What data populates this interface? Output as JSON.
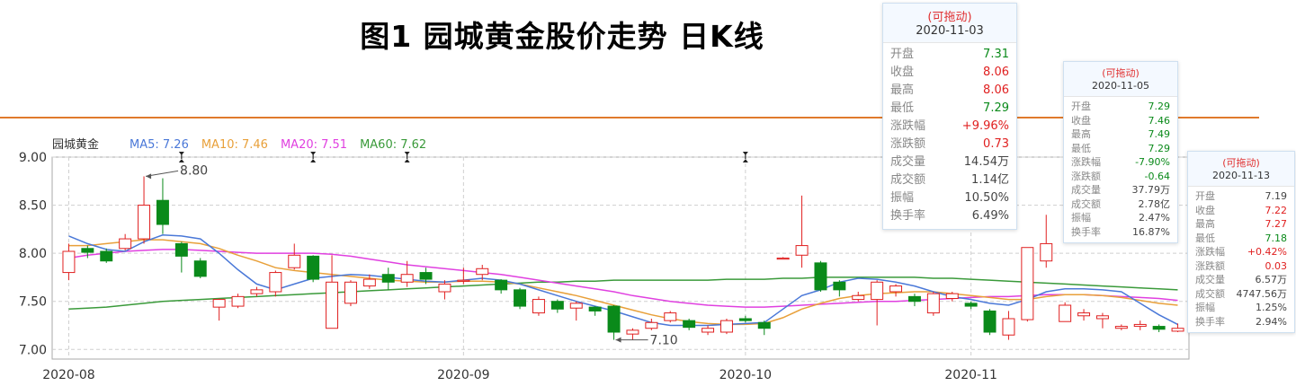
{
  "title": "图1 园城黄金股价走势 日K线",
  "chart_data": {
    "type": "candlestick",
    "legend": {
      "stock_name": "园城黄金",
      "items": [
        {
          "label": "MA5: 7.26",
          "color": "#4a78d8"
        },
        {
          "label": "MA10: 7.46",
          "color": "#e8a03a"
        },
        {
          "label": "MA20: 7.51",
          "color": "#e040e0"
        },
        {
          "label": "MA60: 7.62",
          "color": "#3a9a3a"
        }
      ]
    },
    "ylim": [
      6.9,
      9.0
    ],
    "y_ticks": [
      "9.00",
      "8.50",
      "8.00",
      "7.50",
      "7.00"
    ],
    "y_tick_values": [
      9.0,
      8.5,
      8.0,
      7.5,
      7.0
    ],
    "x_ticks": [
      {
        "label": "2020-08",
        "index": 0
      },
      {
        "label": "2020-09",
        "index": 21
      },
      {
        "label": "2020-10",
        "index": 36
      },
      {
        "label": "2020-11",
        "index": 48
      }
    ],
    "annotations": [
      {
        "text": "8.80",
        "index": 4,
        "value": 8.8
      },
      {
        "text": "7.10",
        "index": 29,
        "value": 7.1
      }
    ],
    "markers": [
      6,
      13,
      18,
      36
    ],
    "colors": {
      "up": "#e02020",
      "down": "#0a8a1a",
      "ma5": "#4a78d8",
      "ma10": "#e8a03a",
      "ma20": "#e040e0",
      "ma60": "#3a9a3a"
    },
    "candles": [
      {
        "date": "2020-07-31",
        "o": 7.8,
        "c": 8.02,
        "h": 8.1,
        "l": 7.72
      },
      {
        "date": "2020-08-03",
        "o": 8.05,
        "c": 8.01,
        "h": 8.08,
        "l": 7.95
      },
      {
        "date": "2020-08-04",
        "o": 8.02,
        "c": 7.92,
        "h": 8.05,
        "l": 7.9
      },
      {
        "date": "2020-08-05",
        "o": 8.05,
        "c": 8.15,
        "h": 8.2,
        "l": 8.03
      },
      {
        "date": "2020-08-06",
        "o": 8.15,
        "c": 8.5,
        "h": 8.8,
        "l": 8.1
      },
      {
        "date": "2020-08-07",
        "o": 8.55,
        "c": 8.3,
        "h": 8.78,
        "l": 8.2
      },
      {
        "date": "2020-08-10",
        "o": 8.1,
        "c": 7.97,
        "h": 8.12,
        "l": 7.8
      },
      {
        "date": "2020-08-11",
        "o": 7.92,
        "c": 7.76,
        "h": 7.95,
        "l": 7.74
      },
      {
        "date": "2020-08-12",
        "o": 7.44,
        "c": 7.52,
        "h": 7.53,
        "l": 7.3
      },
      {
        "date": "2020-08-13",
        "o": 7.45,
        "c": 7.55,
        "h": 7.58,
        "l": 7.43
      },
      {
        "date": "2020-08-14",
        "o": 7.58,
        "c": 7.62,
        "h": 7.65,
        "l": 7.55
      },
      {
        "date": "2020-08-17",
        "o": 7.6,
        "c": 7.8,
        "h": 7.82,
        "l": 7.55
      },
      {
        "date": "2020-08-18",
        "o": 7.85,
        "c": 7.98,
        "h": 8.1,
        "l": 7.83
      },
      {
        "date": "2020-08-19",
        "o": 7.97,
        "c": 7.73,
        "h": 7.98,
        "l": 7.7
      },
      {
        "date": "2020-08-20",
        "o": 7.22,
        "c": 7.7,
        "h": 7.98,
        "l": 7.22
      },
      {
        "date": "2020-08-21",
        "o": 7.48,
        "c": 7.7,
        "h": 7.72,
        "l": 7.45
      },
      {
        "date": "2020-08-24",
        "o": 7.66,
        "c": 7.73,
        "h": 7.78,
        "l": 7.63
      },
      {
        "date": "2020-08-25",
        "o": 7.78,
        "c": 7.7,
        "h": 7.85,
        "l": 7.62
      },
      {
        "date": "2020-08-26",
        "o": 7.7,
        "c": 7.78,
        "h": 7.92,
        "l": 7.65
      },
      {
        "date": "2020-08-27",
        "o": 7.8,
        "c": 7.73,
        "h": 7.85,
        "l": 7.68
      },
      {
        "date": "2020-08-28",
        "o": 7.6,
        "c": 7.68,
        "h": 7.72,
        "l": 7.52
      },
      {
        "date": "2020-08-31",
        "o": 7.72,
        "c": 7.72,
        "h": 7.85,
        "l": 7.68
      },
      {
        "date": "2020-09-01",
        "o": 7.78,
        "c": 7.84,
        "h": 7.88,
        "l": 7.72
      },
      {
        "date": "2020-09-02",
        "o": 7.72,
        "c": 7.62,
        "h": 7.73,
        "l": 7.58
      },
      {
        "date": "2020-09-03",
        "o": 7.62,
        "c": 7.45,
        "h": 7.64,
        "l": 7.42
      },
      {
        "date": "2020-09-04",
        "o": 7.38,
        "c": 7.52,
        "h": 7.55,
        "l": 7.35
      },
      {
        "date": "2020-09-07",
        "o": 7.5,
        "c": 7.42,
        "h": 7.52,
        "l": 7.38
      },
      {
        "date": "2020-09-08",
        "o": 7.43,
        "c": 7.48,
        "h": 7.5,
        "l": 7.3
      },
      {
        "date": "2020-09-09",
        "o": 7.44,
        "c": 7.4,
        "h": 7.45,
        "l": 7.35
      },
      {
        "date": "2020-09-10",
        "o": 7.45,
        "c": 7.18,
        "h": 7.46,
        "l": 7.1
      },
      {
        "date": "2020-09-11",
        "o": 7.16,
        "c": 7.2,
        "h": 7.22,
        "l": 7.1
      },
      {
        "date": "2020-09-14",
        "o": 7.22,
        "c": 7.28,
        "h": 7.32,
        "l": 7.2
      },
      {
        "date": "2020-09-15",
        "o": 7.3,
        "c": 7.38,
        "h": 7.4,
        "l": 7.28
      },
      {
        "date": "2020-09-16",
        "o": 7.3,
        "c": 7.23,
        "h": 7.32,
        "l": 7.2
      },
      {
        "date": "2020-09-17",
        "o": 7.18,
        "c": 7.22,
        "h": 7.25,
        "l": 7.15
      },
      {
        "date": "2020-09-18",
        "o": 7.18,
        "c": 7.3,
        "h": 7.32,
        "l": 7.16
      },
      {
        "date": "2020-09-21",
        "o": 7.32,
        "c": 7.3,
        "h": 7.35,
        "l": 7.28
      },
      {
        "date": "2020-09-22",
        "o": 7.28,
        "c": 7.22,
        "h": 7.3,
        "l": 7.15
      },
      {
        "date": "2020-09-23",
        "o": 7.95,
        "c": 7.95,
        "h": 7.96,
        "l": 7.95
      },
      {
        "date": "2020-09-24",
        "o": 7.98,
        "c": 8.08,
        "h": 8.6,
        "l": 7.85
      },
      {
        "date": "2020-09-25",
        "o": 7.9,
        "c": 7.62,
        "h": 7.92,
        "l": 7.6
      },
      {
        "date": "2020-09-28",
        "o": 7.7,
        "c": 7.62,
        "h": 7.72,
        "l": 7.55
      },
      {
        "date": "2020-09-29",
        "o": 7.52,
        "c": 7.56,
        "h": 7.6,
        "l": 7.5
      },
      {
        "date": "2020-09-30",
        "o": 7.52,
        "c": 7.7,
        "h": 7.72,
        "l": 7.25
      },
      {
        "date": "2020-10-09",
        "o": 7.6,
        "c": 7.66,
        "h": 7.68,
        "l": 7.55
      },
      {
        "date": "2020-10-12",
        "o": 7.55,
        "c": 7.5,
        "h": 7.58,
        "l": 7.45
      },
      {
        "date": "2020-10-13",
        "o": 7.38,
        "c": 7.58,
        "h": 7.6,
        "l": 7.35
      },
      {
        "date": "2020-10-14",
        "o": 7.53,
        "c": 7.58,
        "h": 7.6,
        "l": 7.5
      },
      {
        "date": "2020-10-15",
        "o": 7.48,
        "c": 7.45,
        "h": 7.5,
        "l": 7.42
      },
      {
        "date": "2020-10-16",
        "o": 7.4,
        "c": 7.18,
        "h": 7.42,
        "l": 7.15
      },
      {
        "date": "2020-10-19",
        "o": 7.15,
        "c": 7.32,
        "h": 7.4,
        "l": 7.1
      },
      {
        "date": "2020-10-20",
        "o": 7.31,
        "c": 8.06,
        "h": 8.06,
        "l": 7.29
      },
      {
        "date": "2020-10-21",
        "o": 7.92,
        "c": 8.1,
        "h": 8.4,
        "l": 7.85
      },
      {
        "date": "2020-10-22",
        "o": 7.29,
        "c": 7.46,
        "h": 7.49,
        "l": 7.29
      },
      {
        "date": "2020-10-23",
        "o": 7.35,
        "c": 7.38,
        "h": 7.42,
        "l": 7.3
      },
      {
        "date": "2020-10-26",
        "o": 7.32,
        "c": 7.35,
        "h": 7.38,
        "l": 7.22
      },
      {
        "date": "2020-10-27",
        "o": 7.22,
        "c": 7.24,
        "h": 7.26,
        "l": 7.2
      },
      {
        "date": "2020-10-28",
        "o": 7.24,
        "c": 7.26,
        "h": 7.3,
        "l": 7.2
      },
      {
        "date": "2020-10-29",
        "o": 7.24,
        "c": 7.21,
        "h": 7.26,
        "l": 7.18
      },
      {
        "date": "2020-10-30",
        "o": 7.19,
        "c": 7.22,
        "h": 7.27,
        "l": 7.18
      }
    ],
    "ma5": [
      8.18,
      8.1,
      8.04,
      8.02,
      8.12,
      8.19,
      8.18,
      8.15,
      8.0,
      7.83,
      7.68,
      7.62,
      7.68,
      7.74,
      7.76,
      7.78,
      7.77,
      7.75,
      7.73,
      7.71,
      7.7,
      7.72,
      7.74,
      7.72,
      7.68,
      7.62,
      7.56,
      7.5,
      7.45,
      7.4,
      7.34,
      7.28,
      7.25,
      7.25,
      7.25,
      7.26,
      7.27,
      7.28,
      7.42,
      7.56,
      7.62,
      7.7,
      7.74,
      7.73,
      7.7,
      7.66,
      7.6,
      7.55,
      7.52,
      7.48,
      7.46,
      7.52,
      7.6,
      7.63,
      7.63,
      7.62,
      7.6,
      7.48,
      7.36,
      7.26
    ],
    "ma10": [
      8.08,
      8.08,
      8.1,
      8.12,
      8.14,
      8.14,
      8.12,
      8.1,
      8.05,
      7.98,
      7.92,
      7.85,
      7.82,
      7.8,
      7.78,
      7.76,
      7.74,
      7.72,
      7.71,
      7.7,
      7.7,
      7.71,
      7.71,
      7.7,
      7.68,
      7.64,
      7.6,
      7.56,
      7.51,
      7.46,
      7.41,
      7.36,
      7.32,
      7.29,
      7.27,
      7.26,
      7.26,
      7.27,
      7.33,
      7.42,
      7.48,
      7.53,
      7.56,
      7.58,
      7.59,
      7.6,
      7.6,
      7.58,
      7.56,
      7.54,
      7.52,
      7.52,
      7.55,
      7.57,
      7.57,
      7.56,
      7.54,
      7.51,
      7.48,
      7.46
    ],
    "ma20": [
      7.95,
      7.98,
      8.0,
      8.02,
      8.03,
      8.04,
      8.04,
      8.03,
      8.02,
      8.01,
      8.0,
      8.0,
      8.0,
      8.0,
      7.99,
      7.97,
      7.94,
      7.91,
      7.88,
      7.86,
      7.84,
      7.82,
      7.8,
      7.78,
      7.75,
      7.72,
      7.69,
      7.66,
      7.63,
      7.6,
      7.56,
      7.53,
      7.5,
      7.48,
      7.46,
      7.45,
      7.44,
      7.44,
      7.45,
      7.46,
      7.47,
      7.48,
      7.49,
      7.5,
      7.5,
      7.51,
      7.52,
      7.53,
      7.54,
      7.55,
      7.55,
      7.56,
      7.57,
      7.57,
      7.57,
      7.56,
      7.55,
      7.54,
      7.53,
      7.51
    ],
    "ma60": [
      7.42,
      7.43,
      7.44,
      7.46,
      7.48,
      7.5,
      7.51,
      7.52,
      7.53,
      7.54,
      7.55,
      7.56,
      7.57,
      7.58,
      7.59,
      7.6,
      7.61,
      7.62,
      7.63,
      7.64,
      7.65,
      7.66,
      7.67,
      7.68,
      7.69,
      7.7,
      7.7,
      7.71,
      7.71,
      7.72,
      7.72,
      7.72,
      7.72,
      7.72,
      7.72,
      7.73,
      7.73,
      7.73,
      7.74,
      7.74,
      7.75,
      7.75,
      7.75,
      7.75,
      7.75,
      7.75,
      7.74,
      7.74,
      7.73,
      7.72,
      7.71,
      7.7,
      7.69,
      7.68,
      7.67,
      7.66,
      7.65,
      7.64,
      7.63,
      7.62
    ]
  },
  "tooltips": [
    {
      "id": "tip-1",
      "drag_label": "(可拖动)",
      "date": "2020-11-03",
      "rows": [
        {
          "label": "开盘",
          "value": "7.31",
          "trend": "down"
        },
        {
          "label": "收盘",
          "value": "8.06",
          "trend": "up"
        },
        {
          "label": "最高",
          "value": "8.06",
          "trend": "up"
        },
        {
          "label": "最低",
          "value": "7.29",
          "trend": "down"
        },
        {
          "label": "涨跌幅",
          "value": "+9.96%",
          "trend": "up"
        },
        {
          "label": "涨跌额",
          "value": "0.73",
          "trend": "up"
        },
        {
          "label": "成交量",
          "value": "14.54万",
          "trend": ""
        },
        {
          "label": "成交额",
          "value": "1.14亿",
          "trend": ""
        },
        {
          "label": "振幅",
          "value": "10.50%",
          "trend": ""
        },
        {
          "label": "换手率",
          "value": "6.49%",
          "trend": ""
        }
      ]
    },
    {
      "id": "tip-2",
      "drag_label": "(可拖动)",
      "date": "2020-11-05",
      "rows": [
        {
          "label": "开盘",
          "value": "7.29",
          "trend": "down"
        },
        {
          "label": "收盘",
          "value": "7.46",
          "trend": "down"
        },
        {
          "label": "最高",
          "value": "7.49",
          "trend": "down"
        },
        {
          "label": "最低",
          "value": "7.29",
          "trend": "down"
        },
        {
          "label": "涨跌幅",
          "value": "-7.90%",
          "trend": "down"
        },
        {
          "label": "涨跌额",
          "value": "-0.64",
          "trend": "down"
        },
        {
          "label": "成交量",
          "value": "37.79万",
          "trend": ""
        },
        {
          "label": "成交额",
          "value": "2.78亿",
          "trend": ""
        },
        {
          "label": "振幅",
          "value": "2.47%",
          "trend": ""
        },
        {
          "label": "换手率",
          "value": "16.87%",
          "trend": ""
        }
      ]
    },
    {
      "id": "tip-3",
      "drag_label": "(可拖动)",
      "date": "2020-11-13",
      "rows": [
        {
          "label": "开盘",
          "value": "7.19",
          "trend": ""
        },
        {
          "label": "收盘",
          "value": "7.22",
          "trend": "up"
        },
        {
          "label": "最高",
          "value": "7.27",
          "trend": "up"
        },
        {
          "label": "最低",
          "value": "7.18",
          "trend": "down"
        },
        {
          "label": "涨跌幅",
          "value": "+0.42%",
          "trend": "up"
        },
        {
          "label": "涨跌额",
          "value": "0.03",
          "trend": "up"
        },
        {
          "label": "成交量",
          "value": "6.57万",
          "trend": ""
        },
        {
          "label": "成交额",
          "value": "4747.56万",
          "trend": ""
        },
        {
          "label": "振幅",
          "value": "1.25%",
          "trend": ""
        },
        {
          "label": "换手率",
          "value": "2.94%",
          "trend": ""
        }
      ]
    }
  ]
}
